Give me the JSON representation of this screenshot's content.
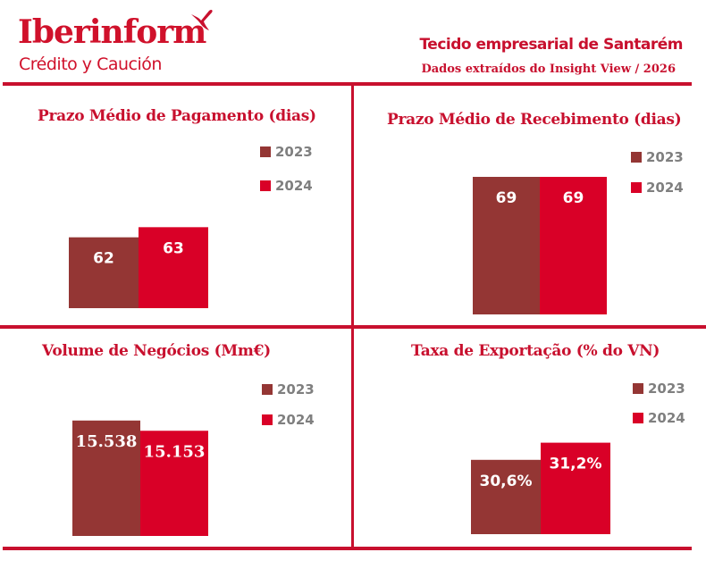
{
  "header": {
    "logo_text": "Iberinform",
    "logo_subtext": "Crédito y Caución",
    "title": "Tecido empresarial de Santarém",
    "subtitle": "Dados extraídos do Insight View / 2026"
  },
  "colors": {
    "brand_red": "#c8102e",
    "series_2023": "#943634",
    "series_2024": "#d90027",
    "legend_text": "#7f7f7f"
  },
  "chart_data": [
    {
      "type": "bar",
      "title": "Prazo Médio de Pagamento (dias)",
      "categories": [
        "Prazo Médio de Pagamento"
      ],
      "series": [
        {
          "name": "2023",
          "values": [
            62
          ],
          "label": "62"
        },
        {
          "name": "2024",
          "values": [
            63
          ],
          "label": "63"
        }
      ],
      "ylim": [
        55,
        70
      ],
      "legend": "top-right",
      "grid": false
    },
    {
      "type": "bar",
      "title": "Prazo Médio de Recebimento (dias)",
      "categories": [
        "Prazo Médio de Recebimento"
      ],
      "series": [
        {
          "name": "2023",
          "values": [
            69
          ],
          "label": "69"
        },
        {
          "name": "2024",
          "values": [
            69
          ],
          "label": "69"
        }
      ],
      "ylim": [
        55,
        70
      ],
      "legend": "top-right",
      "grid": false
    },
    {
      "type": "bar",
      "title": "Volume de Negócios (Mm€)",
      "categories": [
        "Volume de Negócios"
      ],
      "series": [
        {
          "name": "2023",
          "values": [
            15538
          ],
          "label": "15.538"
        },
        {
          "name": "2024",
          "values": [
            15153
          ],
          "label": "15.153"
        }
      ],
      "ylim": [
        11200,
        15900
      ],
      "legend": "top-right",
      "grid": false
    },
    {
      "type": "bar",
      "title": "Taxa de Exportação (% do VN)",
      "categories": [
        "Taxa de Exportação"
      ],
      "series": [
        {
          "name": "2023",
          "values": [
            30.6
          ],
          "label": "30,6%"
        },
        {
          "name": "2024",
          "values": [
            31.2
          ],
          "label": "31,2%"
        }
      ],
      "ylim": [
        28.0,
        32.0
      ],
      "legend": "top-right",
      "grid": false
    }
  ]
}
